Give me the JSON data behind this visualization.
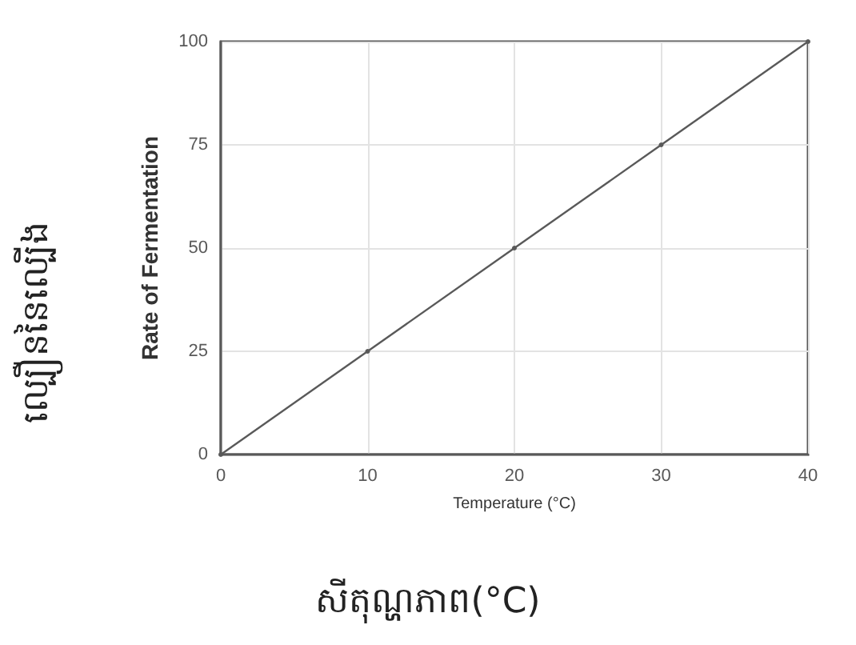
{
  "chart_data": {
    "type": "line",
    "xlabel": "Temperature (°C)",
    "ylabel": "Rate of Fermentation",
    "x": [
      0,
      10,
      20,
      30,
      40
    ],
    "series": [
      {
        "color": "#595959",
        "values": [
          0,
          25,
          50,
          75,
          100
        ]
      }
    ],
    "xlim": [
      0,
      40
    ],
    "xticks": [
      0,
      10,
      20,
      30,
      40
    ],
    "ylim": [
      0,
      100
    ],
    "yticks": [
      0,
      25,
      50,
      75,
      100
    ],
    "grid": true,
    "marker": "circle",
    "line_style": "solid",
    "annotations": [
      "ល្បឿននៃល្បើង",
      "សីតុណ្ហភាព(°C)"
    ]
  }
}
